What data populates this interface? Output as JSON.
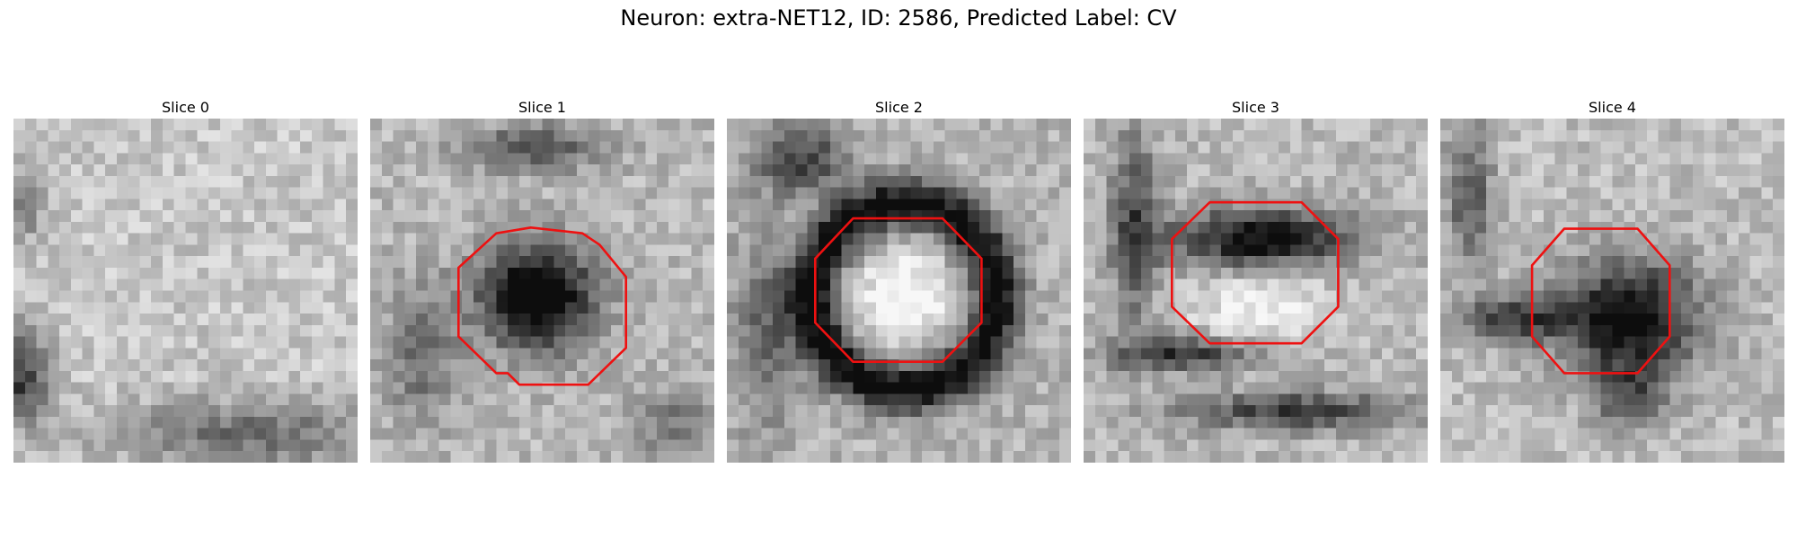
{
  "figure": {
    "title": "Neuron: extra-NET12, ID: 2586, Predicted Label: CV"
  },
  "slices": [
    {
      "title": "Slice 0",
      "contour": false
    },
    {
      "title": "Slice 1",
      "contour": true
    },
    {
      "title": "Slice 2",
      "contour": true
    },
    {
      "title": "Slice 3",
      "contour": true
    },
    {
      "title": "Slice 4",
      "contour": true
    }
  ],
  "colors": {
    "contour": "#ee1111",
    "background": "#ffffff",
    "colormap": "gray"
  }
}
